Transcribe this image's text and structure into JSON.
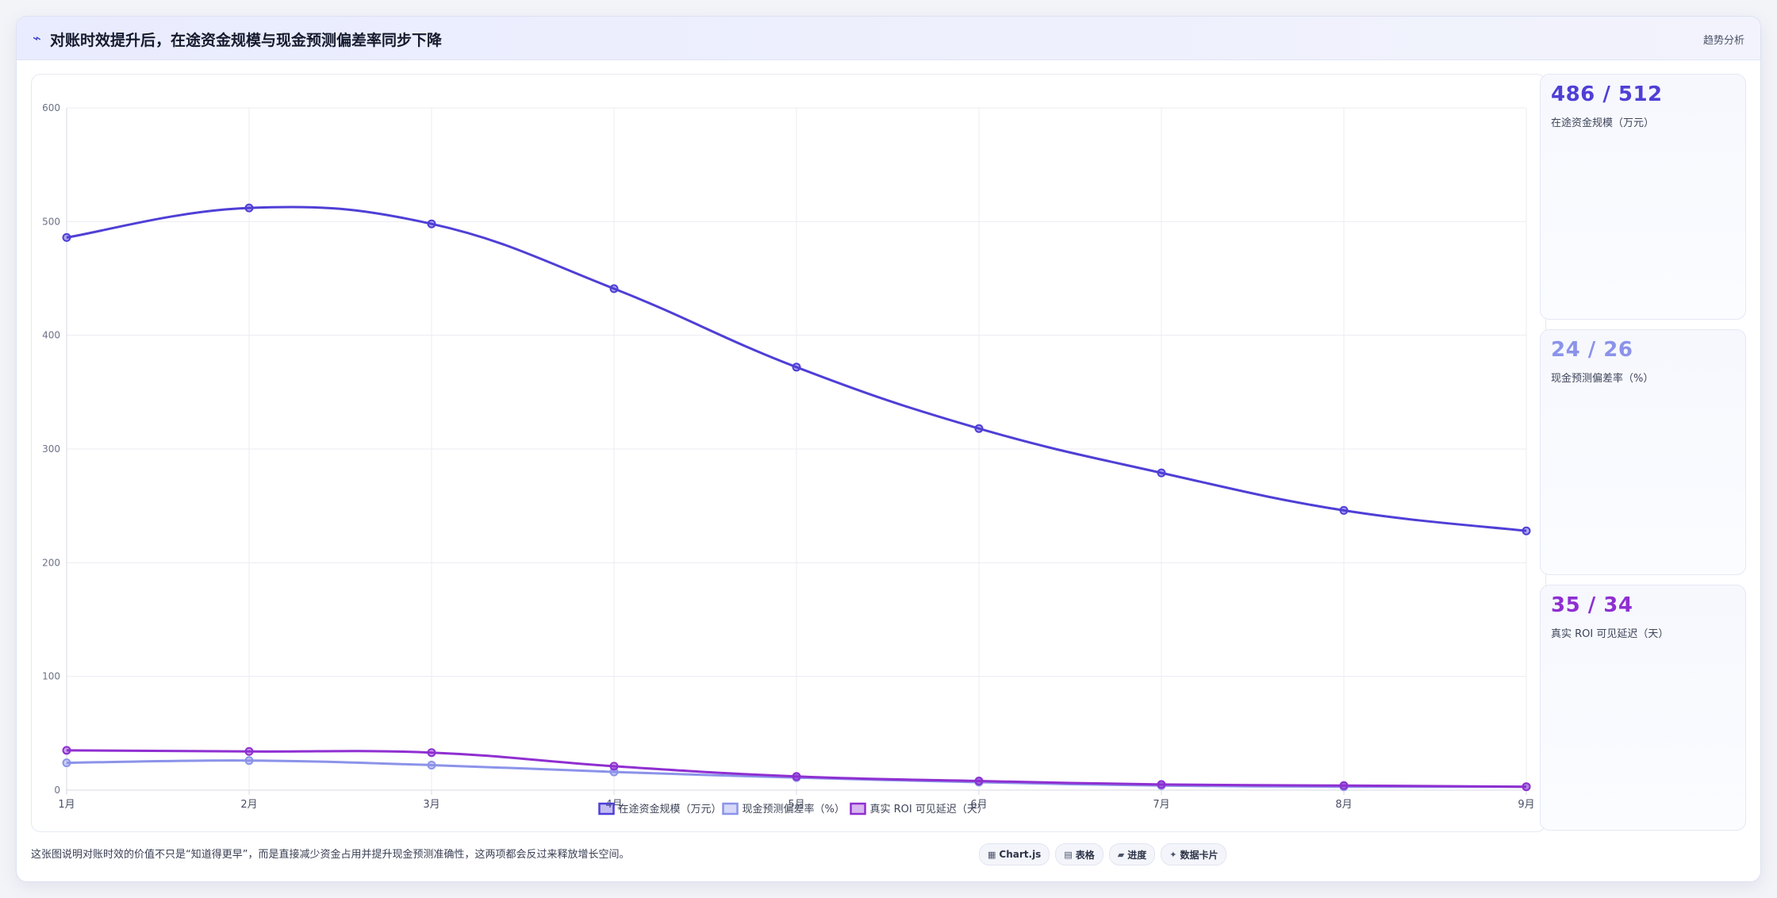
{
  "header": {
    "icon": "trend-line-icon",
    "title": "对账时效提升后，在途资金规模与现金预测偏差率同步下降",
    "tag": "趋势分析"
  },
  "kpis": [
    {
      "value": "486 / 512",
      "label": "在途资金规模（万元）",
      "color": "#4f3fd6"
    },
    {
      "value": "24 / 26",
      "label": "现金预测偏差率（%）",
      "color": "#8b93e9"
    },
    {
      "value": "35 / 34",
      "label": "真实 ROI 可见延迟（天）",
      "color": "#8f2fd1"
    }
  ],
  "footer": {
    "note": "这张图说明对账时效的价值不只是“知道得更早”，而是直接减少资金占用并提升现金预测准确性，这两项都会反过来释放增长空间。",
    "chips": [
      {
        "icon": "chart-icon",
        "glyph": "▦",
        "label": "Chart.js"
      },
      {
        "icon": "table-icon",
        "glyph": "▤",
        "label": "表格"
      },
      {
        "icon": "progress-icon",
        "glyph": "▰",
        "label": "进度"
      },
      {
        "icon": "data-card-icon",
        "glyph": "✦",
        "label": "数据卡片"
      }
    ]
  },
  "chart_data": {
    "type": "line",
    "categories": [
      "1月",
      "2月",
      "3月",
      "4月",
      "5月",
      "6月",
      "7月",
      "8月",
      "9月"
    ],
    "ylim": [
      0,
      600
    ],
    "yticks": [
      0,
      100,
      200,
      300,
      400,
      500,
      600
    ],
    "grid": true,
    "legend_position": "bottom",
    "series": [
      {
        "name": "在途资金规模（万元）",
        "color": "#4f3fd6",
        "values": [
          486,
          512,
          498,
          441,
          372,
          318,
          279,
          246,
          228
        ]
      },
      {
        "name": "现金预测偏差率（%）",
        "color": "#8b93e9",
        "values": [
          24,
          26,
          22,
          16,
          11,
          7,
          4,
          3,
          3
        ]
      },
      {
        "name": "真实 ROI 可见延迟（天）",
        "color": "#8f2fd1",
        "values": [
          35,
          34,
          33,
          21,
          12,
          8,
          5,
          4,
          3
        ]
      }
    ]
  }
}
